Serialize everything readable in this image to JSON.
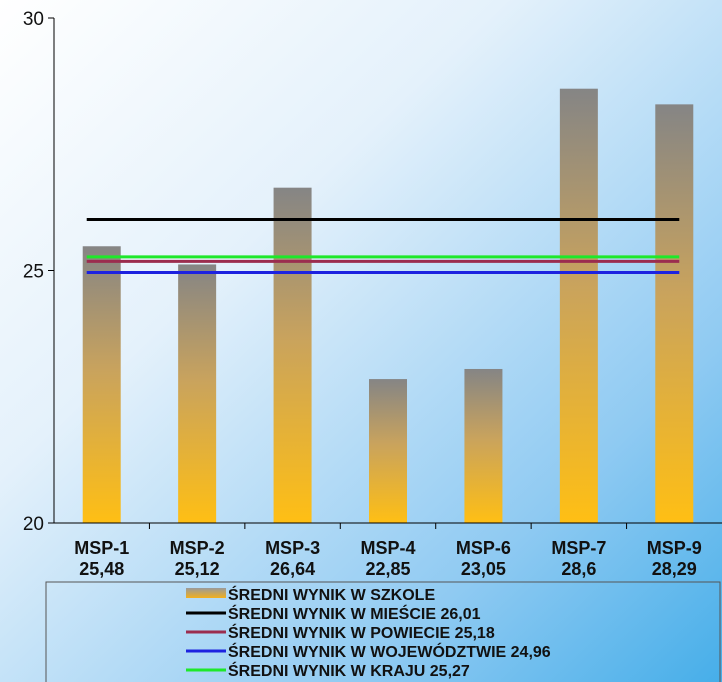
{
  "chart_data": {
    "type": "bar",
    "categories": [
      "MSP-1",
      "MSP-2",
      "MSP-3",
      "MSP-4",
      "MSP-6",
      "MSP-7",
      "MSP-9"
    ],
    "category_value_labels": [
      "25,48",
      "25,12",
      "26,64",
      "22,85",
      "23,05",
      "28,6",
      "28,29"
    ],
    "values": [
      25.48,
      25.12,
      26.64,
      22.85,
      23.05,
      28.6,
      28.29
    ],
    "ylim": [
      20,
      30
    ],
    "yticks": [
      20,
      25,
      30
    ],
    "grid": false,
    "legend_position": "bottom",
    "series": [
      {
        "name": "ŚREDNI WYNIK W SZKOLE",
        "kind": "bar",
        "color": "#f5b92a"
      }
    ],
    "reference_lines": [
      {
        "name": "ŚREDNI WYNIK W MIEŚCIE 26,01",
        "value": 26.01,
        "color": "#000000"
      },
      {
        "name": "ŚREDNI WYNIK W POWIECIE 25,18",
        "value": 25.18,
        "color": "#9b2d4f"
      },
      {
        "name": "ŚREDNI WYNIK W WOJEWÓDZTWIE 24,96",
        "value": 24.96,
        "color": "#1d22e0"
      },
      {
        "name": "ŚREDNI WYNIK W KRAJU  25,27",
        "value": 25.27,
        "color": "#1ee82a"
      }
    ]
  }
}
